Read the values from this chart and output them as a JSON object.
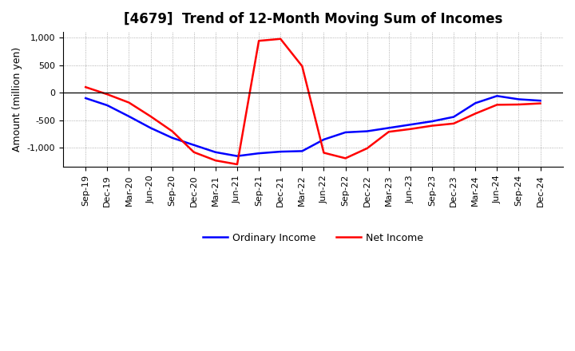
{
  "title": "[4679]  Trend of 12-Month Moving Sum of Incomes",
  "ylabel": "Amount (million yen)",
  "ylim": [
    -1350,
    1100
  ],
  "yticks": [
    -1000,
    -500,
    0,
    500,
    1000
  ],
  "ytick_labels": [
    "-1,000",
    "-500",
    "0",
    "500",
    "1,000"
  ],
  "x_labels": [
    "Sep-19",
    "Dec-19",
    "Mar-20",
    "Jun-20",
    "Sep-20",
    "Dec-20",
    "Mar-21",
    "Jun-21",
    "Sep-21",
    "Dec-21",
    "Mar-22",
    "Jun-22",
    "Sep-22",
    "Dec-22",
    "Mar-23",
    "Jun-23",
    "Sep-23",
    "Dec-23",
    "Mar-24",
    "Jun-24",
    "Sep-24",
    "Dec-24"
  ],
  "ordinary_income": [
    -100,
    -230,
    -430,
    -640,
    -820,
    -950,
    -1080,
    -1150,
    -1100,
    -1070,
    -1060,
    -850,
    -720,
    -700,
    -640,
    -580,
    -520,
    -440,
    -190,
    -60,
    -120,
    -145
  ],
  "net_income": [
    100,
    -30,
    -180,
    -430,
    -700,
    -1080,
    -1230,
    -1300,
    940,
    975,
    480,
    -1090,
    -1190,
    -1010,
    -710,
    -660,
    -600,
    -560,
    -380,
    -220,
    -215,
    -195
  ],
  "line_color_ordinary": "#0000ff",
  "line_color_net": "#ff0000",
  "bg_color": "#ffffff",
  "grid_color": "#999999",
  "title_fontsize": 12,
  "axis_label_fontsize": 9,
  "tick_fontsize": 8,
  "legend_fontsize": 9
}
